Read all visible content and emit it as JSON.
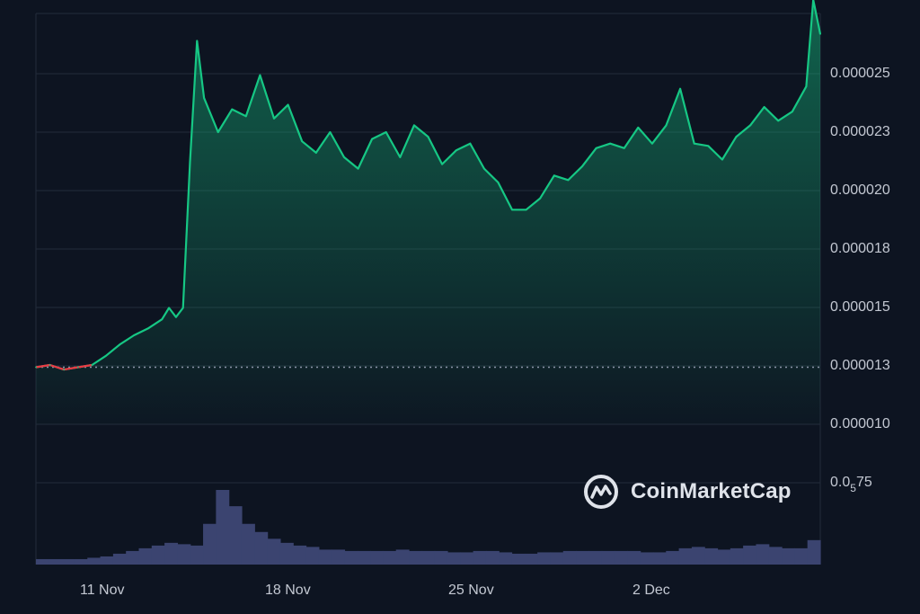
{
  "chart_data": {
    "type": "line",
    "title": "",
    "xlabel": "",
    "ylabel": "",
    "x_tick_labels": [
      "11 Nov",
      "18 Nov",
      "25 Nov",
      "2 Dec"
    ],
    "y_tick_labels": [
      "0.000025",
      "0.000023",
      "0.000020",
      "0.000018",
      "0.000015",
      "0.000013",
      "0.000010"
    ],
    "ylim": [
      8.2e-06,
      2.62e-05
    ],
    "baseline_price": 1.07e-05,
    "colors": {
      "up": "#16c784",
      "down": "#ea3943",
      "volume": "#3b4470"
    },
    "series": [
      {
        "x": [
          "2024-11-09 12:00",
          "2024-11-10 00:00",
          "2024-11-10 12:00",
          "2024-11-11 00:00",
          "2024-11-11 12:00",
          "2024-11-12 00:00",
          "2024-11-12 12:00",
          "2024-11-13 00:00",
          "2024-11-13 12:00",
          "2024-11-14 00:00",
          "2024-11-14 06:00",
          "2024-11-14 12:00",
          "2024-11-14 18:00",
          "2024-11-15 00:00",
          "2024-11-15 06:00",
          "2024-11-15 12:00",
          "2024-11-16 00:00",
          "2024-11-16 12:00",
          "2024-11-17 00:00",
          "2024-11-17 12:00",
          "2024-11-18 00:00",
          "2024-11-18 12:00",
          "2024-11-19 00:00",
          "2024-11-19 12:00",
          "2024-11-20 00:00",
          "2024-11-20 12:00",
          "2024-11-21 00:00",
          "2024-11-21 12:00",
          "2024-11-22 00:00",
          "2024-11-22 12:00",
          "2024-11-23 00:00",
          "2024-11-23 12:00",
          "2024-11-24 00:00",
          "2024-11-24 12:00",
          "2024-11-25 00:00",
          "2024-11-25 12:00",
          "2024-11-26 00:00",
          "2024-11-26 12:00",
          "2024-11-27 00:00",
          "2024-11-27 12:00",
          "2024-11-28 00:00",
          "2024-11-28 12:00",
          "2024-11-29 00:00",
          "2024-11-29 12:00",
          "2024-11-30 00:00",
          "2024-11-30 12:00",
          "2024-12-01 00:00",
          "2024-12-01 12:00",
          "2024-12-02 00:00",
          "2024-12-02 12:00",
          "2024-12-03 00:00",
          "2024-12-03 12:00",
          "2024-12-04 00:00",
          "2024-12-04 12:00",
          "2024-12-05 00:00",
          "2024-12-05 12:00",
          "2024-12-06 00:00",
          "2024-12-06 12:00",
          "2024-12-07 00:00",
          "2024-12-07 06:00",
          "2024-12-07 12:00"
        ],
        "y": [
          1.07e-05,
          1.08e-05,
          1.06e-05,
          1.07e-05,
          1.08e-05,
          1.12e-05,
          1.17e-05,
          1.21e-05,
          1.24e-05,
          1.28e-05,
          1.33e-05,
          1.29e-05,
          1.33e-05,
          1.97e-05,
          2.5e-05,
          2.25e-05,
          2.1e-05,
          2.2e-05,
          2.17e-05,
          2.35e-05,
          2.16e-05,
          2.22e-05,
          2.06e-05,
          2.01e-05,
          2.1e-05,
          1.99e-05,
          1.94e-05,
          2.07e-05,
          2.1e-05,
          1.99e-05,
          2.13e-05,
          2.08e-05,
          1.96e-05,
          2.02e-05,
          2.05e-05,
          1.94e-05,
          1.88e-05,
          1.76e-05,
          1.76e-05,
          1.81e-05,
          1.91e-05,
          1.89e-05,
          1.95e-05,
          2.03e-05,
          2.05e-05,
          2.03e-05,
          2.12e-05,
          2.05e-05,
          2.13e-05,
          2.29e-05,
          2.05e-05,
          2.04e-05,
          1.98e-05,
          2.08e-05,
          2.13e-05,
          2.21e-05,
          2.15e-05,
          2.19e-05,
          2.3e-05,
          2.68e-05,
          2.53e-05
        ]
      }
    ],
    "volume": {
      "note_label": "0.0",
      "note_sub": "5",
      "note_tail": "75",
      "values": [
        4,
        4,
        4,
        4,
        5,
        6,
        8,
        10,
        12,
        14,
        16,
        15,
        14,
        30,
        55,
        43,
        30,
        24,
        19,
        16,
        14,
        13,
        11,
        11,
        10,
        10,
        10,
        10,
        11,
        10,
        10,
        10,
        9,
        9,
        10,
        10,
        9,
        8,
        8,
        9,
        9,
        10,
        10,
        10,
        10,
        10,
        10,
        9,
        9,
        10,
        12,
        13,
        12,
        11,
        12,
        14,
        15,
        13,
        12,
        12,
        18
      ]
    }
  },
  "watermark": {
    "brand": "CoinMarketCap",
    "icon": "coinmarketcap-logo-icon"
  }
}
